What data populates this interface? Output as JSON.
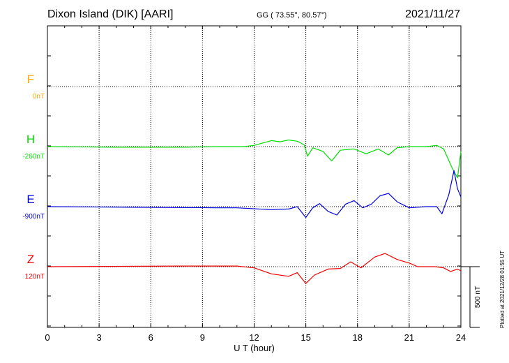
{
  "header": {
    "station": "Dixon Island (DIK)  [AARI]",
    "coords": "GG ( 73.55°,  80.57°)",
    "date": "2021/11/27"
  },
  "plotted_note": "Plotted at 2021/12/28 01:55 UT",
  "chart_data": {
    "type": "line",
    "xlabel": "U T (hour)",
    "xlim": [
      0,
      24
    ],
    "xticks": [
      0,
      3,
      6,
      9,
      12,
      15,
      18,
      21,
      24
    ],
    "scale_bar": {
      "label": "500 nT",
      "value_nT": 500
    },
    "grid": true,
    "series": [
      {
        "name": "F",
        "baseline_label": "0nT",
        "color": "#ffa500",
        "points": []
      },
      {
        "name": "H",
        "baseline_label": "-260nT",
        "color": "#00dd00",
        "points": [
          [
            0,
            0
          ],
          [
            4,
            -5
          ],
          [
            8,
            -5
          ],
          [
            10,
            0
          ],
          [
            11.4,
            0
          ],
          [
            12,
            10
          ],
          [
            13,
            50
          ],
          [
            13.5,
            40
          ],
          [
            14,
            55
          ],
          [
            14.5,
            45
          ],
          [
            14.9,
            15
          ],
          [
            15.1,
            -80
          ],
          [
            15.4,
            -10
          ],
          [
            16,
            -40
          ],
          [
            16.5,
            -120
          ],
          [
            17,
            -30
          ],
          [
            17.8,
            -20
          ],
          [
            18.5,
            -60
          ],
          [
            19.2,
            -20
          ],
          [
            19.8,
            -70
          ],
          [
            20.3,
            -10
          ],
          [
            21,
            0
          ],
          [
            22,
            0
          ],
          [
            22.6,
            10
          ],
          [
            23,
            -20
          ],
          [
            23.5,
            -180
          ],
          [
            23.8,
            -260
          ],
          [
            24,
            -40
          ]
        ]
      },
      {
        "name": "E",
        "baseline_label": "-900nT",
        "color": "#0000dd",
        "points": [
          [
            0,
            0
          ],
          [
            5,
            -5
          ],
          [
            10,
            -10
          ],
          [
            11,
            -10
          ],
          [
            13,
            -25
          ],
          [
            14,
            -20
          ],
          [
            14.5,
            0
          ],
          [
            15,
            -90
          ],
          [
            15.4,
            -10
          ],
          [
            15.8,
            25
          ],
          [
            16.3,
            -40
          ],
          [
            16.8,
            -70
          ],
          [
            17.3,
            20
          ],
          [
            17.8,
            50
          ],
          [
            18.3,
            -10
          ],
          [
            18.8,
            20
          ],
          [
            19.3,
            90
          ],
          [
            19.8,
            110
          ],
          [
            20.3,
            40
          ],
          [
            21,
            -10
          ],
          [
            22,
            0
          ],
          [
            22.6,
            0
          ],
          [
            22.9,
            -60
          ],
          [
            23.3,
            100
          ],
          [
            23.6,
            300
          ],
          [
            23.8,
            150
          ],
          [
            24,
            80
          ]
        ]
      },
      {
        "name": "Z",
        "baseline_label": "120nT",
        "color": "#ee0000",
        "points": [
          [
            0,
            0
          ],
          [
            8,
            5
          ],
          [
            11,
            5
          ],
          [
            12,
            -10
          ],
          [
            13,
            -60
          ],
          [
            14,
            -80
          ],
          [
            14.5,
            -50
          ],
          [
            15,
            -140
          ],
          [
            15.5,
            -70
          ],
          [
            16.3,
            -20
          ],
          [
            17,
            -15
          ],
          [
            17.6,
            40
          ],
          [
            18.2,
            -10
          ],
          [
            19,
            80
          ],
          [
            19.6,
            110
          ],
          [
            20.3,
            60
          ],
          [
            21,
            30
          ],
          [
            21.5,
            0
          ],
          [
            22.5,
            0
          ],
          [
            23,
            -10
          ],
          [
            23.4,
            -40
          ],
          [
            23.8,
            -20
          ],
          [
            24,
            -35
          ]
        ]
      }
    ]
  }
}
